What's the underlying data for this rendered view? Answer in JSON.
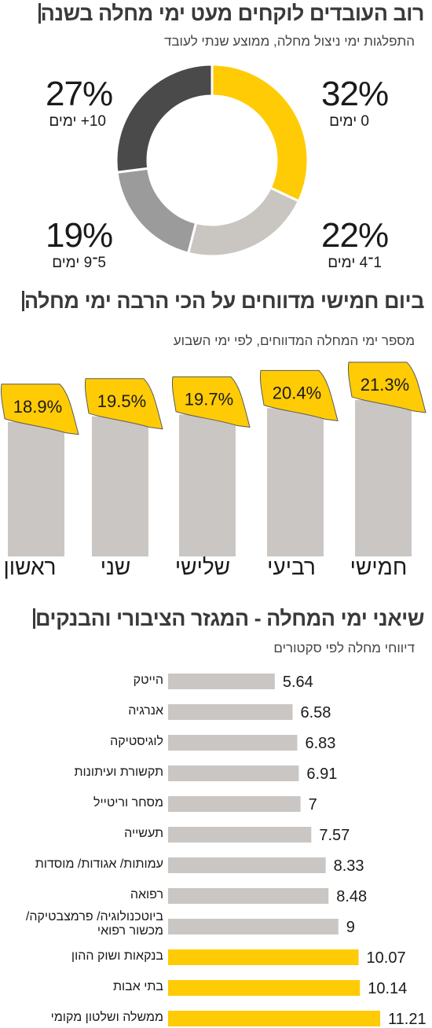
{
  "colors": {
    "yellow": "#FFCB05",
    "light_gray": "#C9C6C2",
    "mid_gray": "#9B9B9B",
    "dark_gray": "#4A4A4A",
    "bar_gray": "#CAC6C3",
    "title": "#3A3A3A"
  },
  "section1": {
    "title": "רוב העובדים לוקחים מעט ימי מחלה בשנה",
    "subtitle": "התפלגות ימי ניצול מחלה, ממוצע שנתי לעובד"
  },
  "section2": {
    "title": "ביום חמישי מדווחים על הכי הרבה ימי מחלה",
    "subtitle": "מספר ימי המחלה המדווחים, לפי ימי השבוע"
  },
  "section3": {
    "title": "שיאני ימי המחלה - המגזר הציבורי והבנקים",
    "subtitle": "דיווחי מחלה לפי סקטורים"
  },
  "chart_data": [
    {
      "type": "pie",
      "title": "רוב העובדים לוקחים מעט ימי מחלה בשנה",
      "subtitle": "התפלגות ימי ניצול מחלה, ממוצע שנתי לעובד",
      "donut": true,
      "slices": [
        {
          "label": "0 ימים",
          "value": 32,
          "display": "32%",
          "color": "#FFCB05"
        },
        {
          "label": "1־4 ימים",
          "value": 22,
          "display": "22%",
          "color": "#C9C6C2"
        },
        {
          "label": "5־9 ימים",
          "value": 19,
          "display": "19%",
          "color": "#9B9B9B"
        },
        {
          "label": "10+ ימים",
          "value": 27,
          "display": "27%",
          "color": "#4A4A4A"
        }
      ]
    },
    {
      "type": "bar",
      "title": "ביום חמישי מדווחים על הכי הרבה ימי מחלה",
      "subtitle": "מספר ימי המחלה המדווחים, לפי ימי השבוע",
      "categories": [
        "ראשון",
        "שני",
        "שלישי",
        "רביעי",
        "חמישי"
      ],
      "values": [
        18.9,
        19.5,
        19.7,
        20.4,
        21.3
      ],
      "data_labels": [
        "18.9%",
        "19.5%",
        "19.7%",
        "20.4%",
        "21.3%"
      ],
      "ylim": [
        0,
        22
      ]
    },
    {
      "type": "bar",
      "orientation": "horizontal",
      "title": "שיאני ימי המחלה - המגזר הציבורי והבנקים",
      "subtitle": "דיווחי מחלה לפי סקטורים",
      "categories": [
        "הייטק",
        "אנרגיה",
        "לוגיסטיקה",
        "תקשורת ועיתונות",
        "מסחר וריטייל",
        "תעשייה",
        "עמותות/ אגודות/ מוסדות",
        "רפואה",
        "ביוטכנולוגיה/ פרמצבטיקה/ מכשור רפואי",
        "בנקאות ושוק ההון",
        "בתי אבות",
        "ממשלה ושלטון מקומי"
      ],
      "values": [
        5.64,
        6.58,
        6.83,
        6.91,
        7,
        7.57,
        8.33,
        8.48,
        9,
        10.07,
        10.14,
        11.21
      ],
      "data_labels": [
        "5.64",
        "6.58",
        "6.83",
        "6.91",
        "7",
        "7.57",
        "8.33",
        "8.48",
        "9",
        "10.07",
        "10.14",
        "11.21"
      ],
      "highlighted": [
        false,
        false,
        false,
        false,
        false,
        false,
        false,
        false,
        false,
        true,
        true,
        true
      ],
      "xlim": [
        0,
        11.21
      ]
    }
  ]
}
